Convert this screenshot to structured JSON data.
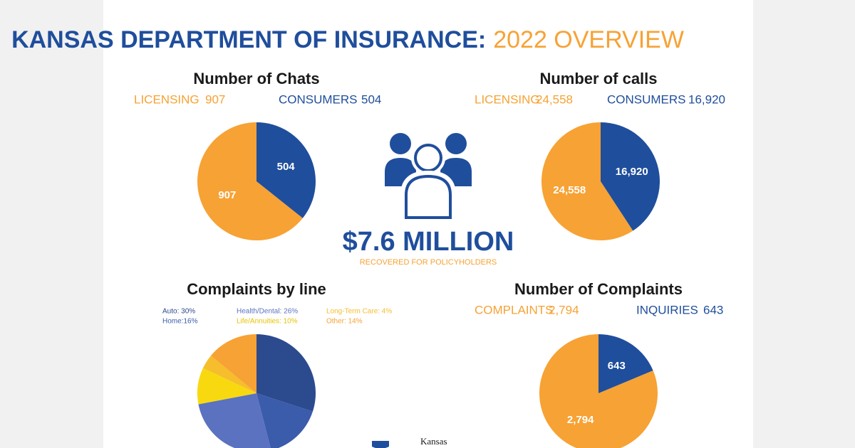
{
  "header": {
    "title": "KANSAS DEPARTMENT OF INSURANCE:",
    "title_highlight": "2022 OVERVIEW"
  },
  "center": {
    "amount": "$7.6 MILLION",
    "caption": "RECOVERED FOR POLICYHOLDERS"
  },
  "footer": {
    "logo_text": "Kansas"
  },
  "chart_data": [
    {
      "type": "pie",
      "title": "Number of Chats",
      "categories": [
        "LICENSING",
        "CONSUMERS"
      ],
      "values": [
        907,
        504
      ],
      "colors": [
        "#f7a234",
        "#1f4e9c"
      ],
      "counterclockwise": true
    },
    {
      "type": "pie",
      "title": "Number of calls",
      "categories": [
        "LICENSING",
        "CONSUMERS"
      ],
      "values": [
        24558,
        16920
      ],
      "value_labels": [
        "24,558",
        "16,920"
      ],
      "colors": [
        "#f7a234",
        "#1f4e9c"
      ],
      "counterclockwise": true
    },
    {
      "type": "pie",
      "title": "Complaints by line",
      "values": [
        30,
        16,
        26,
        10,
        4,
        14
      ],
      "value_labels": [
        "Auto: 30%",
        "Home:16%",
        "Health/Dental: 26%",
        "Life/Annuities: 10%",
        "Long-Term Care: 4%",
        "Other: 14%"
      ],
      "colors": [
        "#2c4a8e",
        "#3b5bab",
        "#5a72c0",
        "#f8d90f",
        "#f6bd2c",
        "#f7a234"
      ],
      "counterclockwise": false
    },
    {
      "type": "pie",
      "title": "Number of Complaints",
      "categories": [
        "COMPLAINTS",
        "INQUIRIES"
      ],
      "values": [
        2794,
        643
      ],
      "value_labels": [
        "2,794",
        "643"
      ],
      "colors": [
        "#f7a234",
        "#1f4e9c"
      ],
      "counterclockwise": true
    }
  ]
}
